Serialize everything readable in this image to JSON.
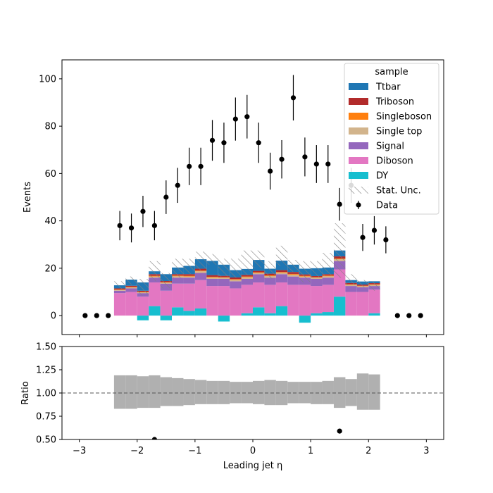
{
  "chart_data": [
    {
      "type": "bar",
      "stacked": true,
      "histogram": true,
      "xlabel": "Leading jet  η",
      "ylabel": "Events",
      "xlim": [
        -3.3,
        3.3
      ],
      "ylim": [
        -8,
        108
      ],
      "xticks": [
        -3,
        -2,
        -1,
        0,
        1,
        2,
        3
      ],
      "xtick_labels": [
        "−3",
        "−2",
        "−1",
        "0",
        "1",
        "2",
        "3"
      ],
      "yticks": [
        0,
        20,
        40,
        60,
        80,
        100
      ],
      "ytick_labels": [
        "0",
        "20",
        "40",
        "60",
        "80",
        "100"
      ],
      "bin_edges": [
        -2.4,
        -2.2,
        -2.0,
        -1.8,
        -1.6,
        -1.4,
        -1.2,
        -1.0,
        -0.8,
        -0.6,
        -0.4,
        -0.2,
        0.0,
        0.2,
        0.4,
        0.6,
        0.8,
        1.0,
        1.2,
        1.4,
        1.6,
        1.8,
        2.0,
        2.2
      ],
      "legend": {
        "title": "sample",
        "location": "upper right",
        "entries": [
          "Ttbar",
          "Triboson",
          "Singleboson",
          "Single top",
          "Signal",
          "Diboson",
          "DY",
          "Stat. Unc.",
          "Data"
        ]
      },
      "series": [
        {
          "name": "DY",
          "color": "#17becf",
          "values": [
            0,
            0,
            -2,
            4,
            -2,
            3.5,
            2,
            3,
            0,
            -2.5,
            0,
            1,
            3.5,
            1,
            4,
            0,
            -3,
            1,
            1.5,
            8,
            0,
            0,
            1
          ]
        },
        {
          "name": "Diboson",
          "color": "#e377c2",
          "values": [
            9.5,
            10,
            8,
            10,
            10.5,
            10,
            11.5,
            12,
            12.5,
            12.5,
            11.5,
            12,
            10.5,
            12,
            10,
            13,
            13,
            11.5,
            11.5,
            11.5,
            10,
            10,
            10
          ]
        },
        {
          "name": "Signal",
          "color": "#9467bd",
          "values": [
            1,
            1.5,
            1.5,
            2,
            3,
            2.5,
            2.5,
            3,
            3,
            3,
            3,
            2.5,
            3.5,
            3,
            3.5,
            3.5,
            3,
            3,
            3,
            3.5,
            2.5,
            2,
            1.5
          ]
        },
        {
          "name": "Single top",
          "color": "#d2b48c",
          "values": [
            0.3,
            0.4,
            0.3,
            0.5,
            0.4,
            0.6,
            0.5,
            0.7,
            0.6,
            0.5,
            0.6,
            0.7,
            0.5,
            0.7,
            0.6,
            0.8,
            0.5,
            0.5,
            0.6,
            0.8,
            0.5,
            0.4,
            0.5
          ]
        },
        {
          "name": "Singleboson",
          "color": "#ff7f0e",
          "values": [
            0.2,
            0.2,
            0.2,
            0.3,
            0.2,
            0.3,
            0.3,
            0.3,
            0.3,
            0.2,
            0.3,
            0.3,
            0.3,
            0.3,
            0.3,
            0.3,
            0.3,
            0.2,
            0.3,
            0.3,
            0.2,
            0.2,
            0.2
          ]
        },
        {
          "name": "Triboson",
          "color": "#b22b2b",
          "values": [
            0.5,
            0.5,
            0.5,
            0.7,
            0.5,
            0.6,
            0.7,
            0.8,
            0.7,
            0.6,
            0.7,
            0.7,
            0.6,
            0.7,
            0.8,
            0.8,
            0.6,
            0.5,
            0.6,
            0.9,
            0.6,
            0.5,
            0.5
          ]
        },
        {
          "name": "Ttbar",
          "color": "#1f77b4",
          "values": [
            1.3,
            2.6,
            3.5,
            1.2,
            2.9,
            2.8,
            3.5,
            4,
            6,
            4.7,
            3.1,
            2.5,
            4.6,
            2.1,
            4,
            3.1,
            2.4,
            3.3,
            2.8,
            2.5,
            1.2,
            1.3,
            0.8
          ]
        }
      ],
      "stat_unc": {
        "name": "Stat. Unc.",
        "hatch": "////",
        "color": "#808080",
        "upper": [
          14.5,
          16.5,
          15.5,
          23,
          18,
          24,
          24,
          27,
          26,
          24,
          24,
          27.5,
          27.5,
          23,
          29.5,
          23.5,
          23,
          23,
          26.5,
          39,
          17.5,
          15,
          14.5
        ],
        "lower": [
          11.3,
          13,
          8.5,
          14.5,
          11.5,
          16,
          17.5,
          19,
          21.5,
          16.5,
          16,
          17,
          20,
          15.5,
          21,
          18.5,
          14,
          16,
          17,
          16,
          13,
          12,
          10.5
        ]
      },
      "data_points": {
        "name": "Data",
        "color": "#000000",
        "x": [
          -2.9,
          -2.7,
          -2.5,
          -2.3,
          -2.1,
          -1.9,
          -1.7,
          -1.5,
          -1.3,
          -1.1,
          -0.9,
          -0.7,
          -0.5,
          -0.3,
          -0.1,
          0.1,
          0.3,
          0.5,
          0.7,
          0.9,
          1.1,
          1.3,
          1.5,
          1.7,
          1.9,
          2.1,
          2.3,
          2.5,
          2.7,
          2.9
        ],
        "y": [
          0,
          0,
          0,
          38,
          37,
          44,
          38,
          50,
          55,
          63,
          63,
          74,
          73,
          83,
          84,
          73,
          61,
          66,
          92,
          67,
          64,
          64,
          47,
          55,
          33,
          36,
          32,
          0,
          0,
          0
        ],
        "yerr": [
          0,
          0,
          0,
          6.2,
          6.1,
          6.6,
          6.2,
          7.1,
          7.4,
          7.9,
          7.9,
          8.6,
          8.5,
          9.1,
          9.2,
          8.5,
          7.8,
          8.1,
          9.6,
          8.2,
          8,
          8,
          6.9,
          7.4,
          5.7,
          6,
          5.7,
          0,
          0,
          0
        ]
      }
    },
    {
      "type": "scatter",
      "xlabel": "Leading jet  η",
      "ylabel": "Ratio",
      "xlim": [
        -3.3,
        3.3
      ],
      "ylim": [
        0.5,
        1.5
      ],
      "xticks": [
        -3,
        -2,
        -1,
        0,
        1,
        2,
        3
      ],
      "xtick_labels": [
        "−3",
        "−2",
        "−1",
        "0",
        "1",
        "2",
        "3"
      ],
      "yticks": [
        0.5,
        0.75,
        1.0,
        1.25,
        1.5
      ],
      "ytick_labels": [
        "0.50",
        "0.75",
        "1.00",
        "1.25",
        "1.50"
      ],
      "reference_line": 1.0,
      "unc_band": {
        "color": "#b0b0b0",
        "bin_edges": [
          -2.4,
          -2.2,
          -2.0,
          -1.8,
          -1.6,
          -1.4,
          -1.2,
          -1.0,
          -0.8,
          -0.6,
          -0.4,
          -0.2,
          0.0,
          0.2,
          0.4,
          0.6,
          0.8,
          1.0,
          1.2,
          1.4,
          1.6,
          1.8,
          2.0,
          2.2
        ],
        "upper": [
          1.19,
          1.19,
          1.18,
          1.19,
          1.17,
          1.16,
          1.15,
          1.14,
          1.13,
          1.13,
          1.12,
          1.12,
          1.13,
          1.14,
          1.13,
          1.12,
          1.12,
          1.12,
          1.13,
          1.17,
          1.15,
          1.21,
          1.2
        ],
        "lower": [
          0.83,
          0.83,
          0.84,
          0.84,
          0.86,
          0.86,
          0.87,
          0.88,
          0.88,
          0.88,
          0.89,
          0.89,
          0.88,
          0.87,
          0.87,
          0.89,
          0.89,
          0.88,
          0.88,
          0.84,
          0.86,
          0.82,
          0.82
        ]
      },
      "points": {
        "x": [
          -1.7,
          1.5
        ],
        "y": [
          0.5,
          0.59
        ]
      }
    }
  ]
}
